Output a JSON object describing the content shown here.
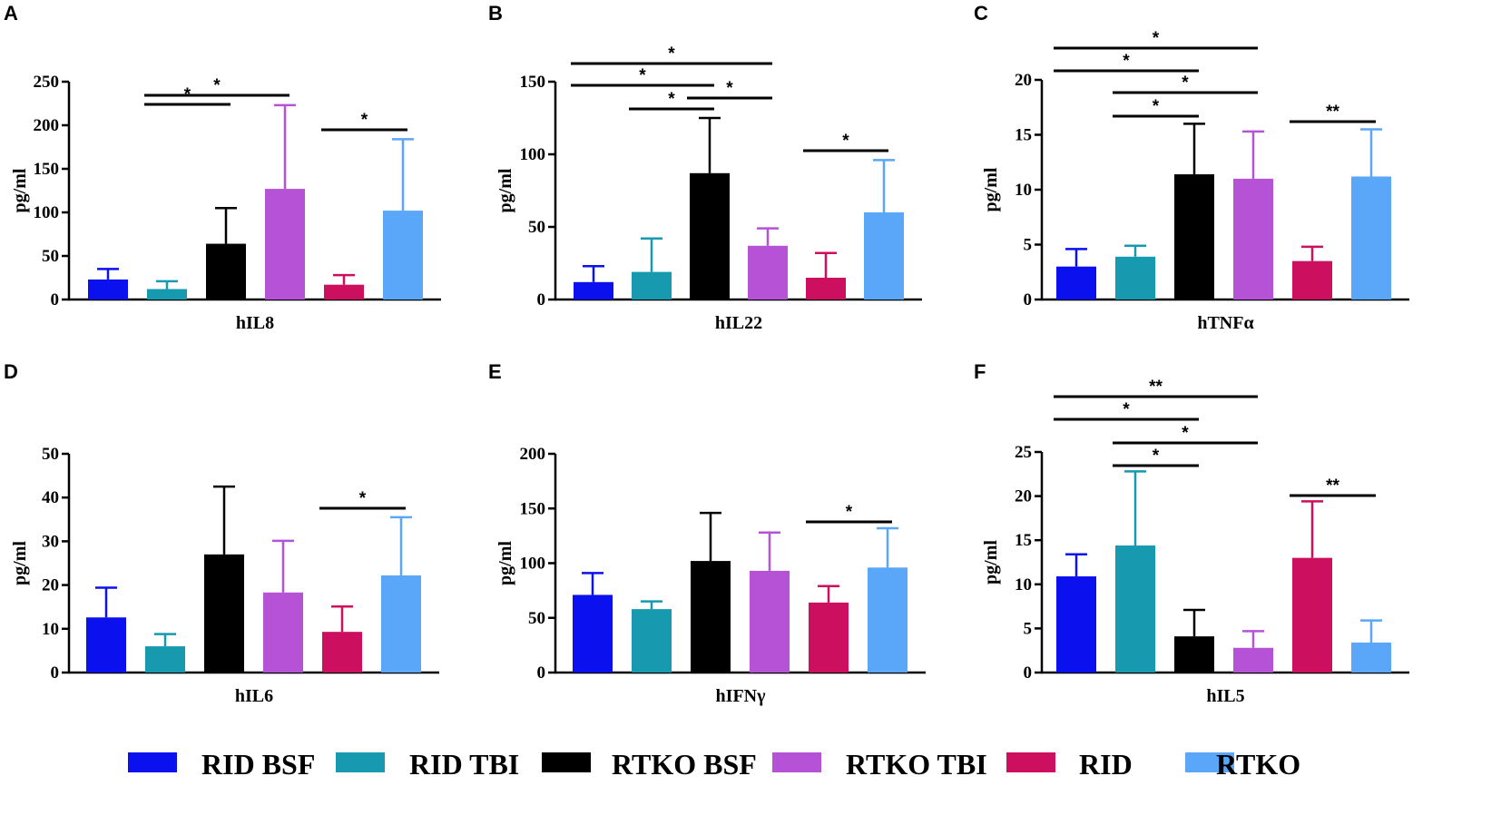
{
  "legend": [
    {
      "name": "RID BSF",
      "color": "#0a10ee"
    },
    {
      "name": "RID TBI",
      "color": "#1799b0"
    },
    {
      "name": "RTKO BSF",
      "color": "#000000"
    },
    {
      "name": "RTKO TBI",
      "color": "#b552d6"
    },
    {
      "name": "RID",
      "color": "#cc0f5e"
    },
    {
      "name": "RTKO",
      "color": "#5aa6f8"
    }
  ],
  "chart_data": [
    {
      "panel": "A",
      "type": "bar",
      "xlabel": "hIL8",
      "ylabel": "pg/ml",
      "ylim": [
        0,
        250
      ],
      "yticks": [
        0,
        50,
        100,
        150,
        200,
        250
      ],
      "series": [
        {
          "name": "RID BSF",
          "value": 23,
          "error": 12
        },
        {
          "name": "RID TBI",
          "value": 12,
          "error": 9
        },
        {
          "name": "RTKO BSF",
          "value": 64,
          "error": 41
        },
        {
          "name": "RTKO TBI",
          "value": 127,
          "error": 96
        },
        {
          "name": "RID",
          "value": 17,
          "error": 11
        },
        {
          "name": "RTKO",
          "value": 102,
          "error": 82
        }
      ],
      "significance": [
        {
          "from": 1,
          "to": 2,
          "label": "*"
        },
        {
          "from": 1,
          "to": 3,
          "label": "*"
        },
        {
          "from": 4,
          "to": 5,
          "label": "*"
        }
      ]
    },
    {
      "panel": "B",
      "type": "bar",
      "xlabel": "hIL22",
      "ylabel": "pg/ml",
      "ylim": [
        0,
        150
      ],
      "yticks": [
        0,
        50,
        100,
        150
      ],
      "series": [
        {
          "name": "RID BSF",
          "value": 12,
          "error": 11
        },
        {
          "name": "RID TBI",
          "value": 19,
          "error": 23
        },
        {
          "name": "RTKO BSF",
          "value": 87,
          "error": 38
        },
        {
          "name": "RTKO TBI",
          "value": 37,
          "error": 12
        },
        {
          "name": "RID",
          "value": 15,
          "error": 17
        },
        {
          "name": "RTKO",
          "value": 60,
          "error": 36
        }
      ],
      "significance": [
        {
          "from": 1,
          "to": 2,
          "label": "*"
        },
        {
          "from": 2,
          "to": 3,
          "label": "*"
        },
        {
          "from": 0,
          "to": 2,
          "label": "*"
        },
        {
          "from": 0,
          "to": 3,
          "label": "*"
        },
        {
          "from": 4,
          "to": 5,
          "label": "*"
        }
      ]
    },
    {
      "panel": "C",
      "type": "bar",
      "xlabel": "hTNFα",
      "ylabel": "pg/ml",
      "ylim": [
        0,
        20
      ],
      "yticks": [
        0,
        5,
        10,
        15,
        20
      ],
      "series": [
        {
          "name": "RID BSF",
          "value": 3.0,
          "error": 1.6
        },
        {
          "name": "RID TBI",
          "value": 3.9,
          "error": 1.0
        },
        {
          "name": "RTKO BSF",
          "value": 11.4,
          "error": 4.6
        },
        {
          "name": "RTKO TBI",
          "value": 11.0,
          "error": 4.3
        },
        {
          "name": "RID",
          "value": 3.5,
          "error": 1.3
        },
        {
          "name": "RTKO",
          "value": 11.2,
          "error": 4.3
        }
      ],
      "significance": [
        {
          "from": 1,
          "to": 2,
          "label": "*"
        },
        {
          "from": 1,
          "to": 3,
          "label": "*"
        },
        {
          "from": 0,
          "to": 2,
          "label": "*"
        },
        {
          "from": 0,
          "to": 3,
          "label": "*"
        },
        {
          "from": 4,
          "to": 5,
          "label": "**"
        }
      ]
    },
    {
      "panel": "D",
      "type": "bar",
      "xlabel": "hIL6",
      "ylabel": "pg/ml",
      "ylim": [
        0,
        50
      ],
      "yticks": [
        0,
        10,
        20,
        30,
        40,
        50
      ],
      "series": [
        {
          "name": "RID BSF",
          "value": 12.6,
          "error": 6.8
        },
        {
          "name": "RID TBI",
          "value": 6.0,
          "error": 2.8
        },
        {
          "name": "RTKO BSF",
          "value": 27.0,
          "error": 15.5
        },
        {
          "name": "RTKO TBI",
          "value": 18.3,
          "error": 11.8
        },
        {
          "name": "RID",
          "value": 9.3,
          "error": 5.8
        },
        {
          "name": "RTKO",
          "value": 22.2,
          "error": 13.3
        }
      ],
      "significance": [
        {
          "from": 4,
          "to": 5,
          "label": "*"
        }
      ]
    },
    {
      "panel": "E",
      "type": "bar",
      "xlabel": "hIFNγ",
      "ylabel": "pg/ml",
      "ylim": [
        0,
        200
      ],
      "yticks": [
        0,
        50,
        100,
        150,
        200
      ],
      "series": [
        {
          "name": "RID BSF",
          "value": 71,
          "error": 20
        },
        {
          "name": "RID TBI",
          "value": 58,
          "error": 7
        },
        {
          "name": "RTKO BSF",
          "value": 102,
          "error": 44
        },
        {
          "name": "RTKO TBI",
          "value": 93,
          "error": 35
        },
        {
          "name": "RID",
          "value": 64,
          "error": 15
        },
        {
          "name": "RTKO",
          "value": 96,
          "error": 36
        }
      ],
      "significance": [
        {
          "from": 4,
          "to": 5,
          "label": "*"
        }
      ]
    },
    {
      "panel": "F",
      "type": "bar",
      "xlabel": "hIL5",
      "ylabel": "pg/ml",
      "ylim": [
        0,
        25
      ],
      "yticks": [
        0,
        5,
        10,
        15,
        20,
        25
      ],
      "series": [
        {
          "name": "RID BSF",
          "value": 10.9,
          "error": 2.5
        },
        {
          "name": "RID TBI",
          "value": 14.4,
          "error": 8.4
        },
        {
          "name": "RTKO BSF",
          "value": 4.1,
          "error": 3.0
        },
        {
          "name": "RTKO TBI",
          "value": 2.8,
          "error": 1.9
        },
        {
          "name": "RID",
          "value": 13.0,
          "error": 6.4
        },
        {
          "name": "RTKO",
          "value": 3.4,
          "error": 2.5
        }
      ],
      "significance": [
        {
          "from": 1,
          "to": 2,
          "label": "*"
        },
        {
          "from": 1,
          "to": 3,
          "label": "*"
        },
        {
          "from": 0,
          "to": 2,
          "label": "*"
        },
        {
          "from": 0,
          "to": 3,
          "label": "**"
        },
        {
          "from": 4,
          "to": 5,
          "label": "**"
        }
      ]
    }
  ]
}
